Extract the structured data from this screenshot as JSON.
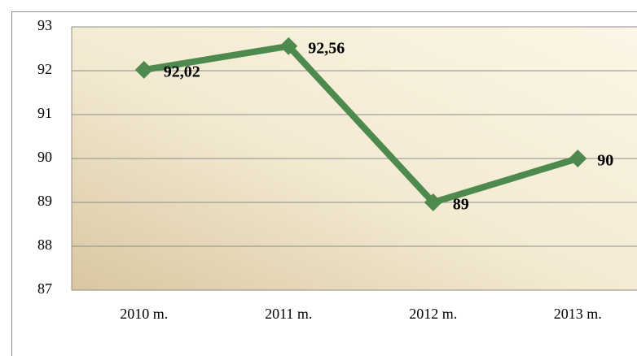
{
  "chart_data": {
    "type": "line",
    "categories": [
      "2010 m.",
      "2011 m.",
      "2012 m.",
      "2013 m."
    ],
    "values": [
      92.02,
      92.56,
      89,
      90
    ],
    "value_labels": [
      "92,02",
      "92,56",
      "89",
      "90"
    ],
    "color": "#4e8a4e",
    "ylim": [
      87,
      93
    ],
    "yticks": [
      87,
      88,
      89,
      90,
      91,
      92,
      93
    ],
    "grid": true
  }
}
